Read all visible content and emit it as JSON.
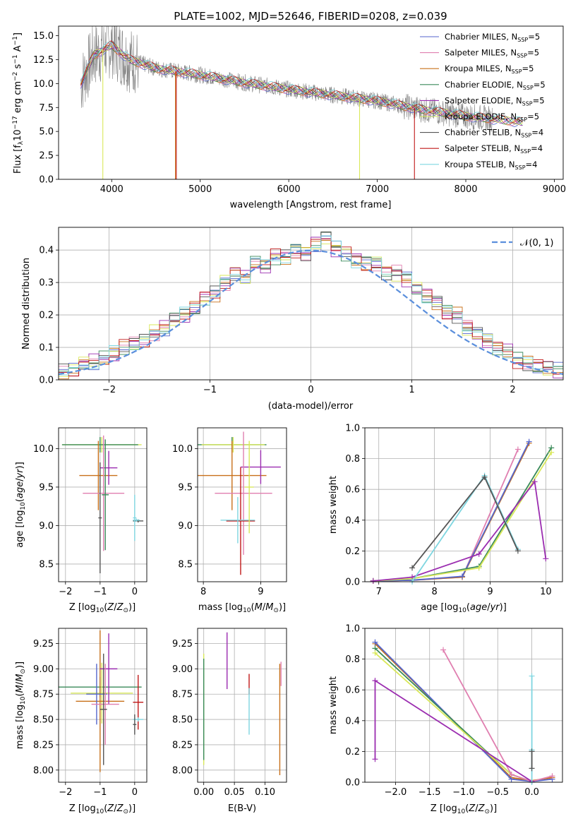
{
  "colors": {
    "chabrier_miles": "#5566cc",
    "salpeter_miles": "#e07fb0",
    "kroupa_miles": "#c8701a",
    "chabrier_elodie": "#3a8a5a",
    "salpeter_elodie": "#9b2db0",
    "kroupa_elodie": "#d9e85a",
    "chabrier_stelib": "#555555",
    "salpeter_stelib": "#c01818",
    "kroupa_stelib": "#7fd6e0",
    "normal": "#5b8fdc",
    "data": "#808080",
    "grid": "#b0b0b0"
  },
  "chart_data": [
    {
      "id": "spectrum",
      "type": "line",
      "title": "PLATE=1002, MJD=52646, FIBERID=0208, z=0.039",
      "xlabel": "wavelength [Angstrom, rest frame]",
      "ylabel": "Flux [f",
      "xlim": [
        3400,
        9100
      ],
      "ylim": [
        0,
        16
      ],
      "xticks": [
        4000,
        5000,
        6000,
        7000,
        8000,
        9000
      ],
      "yticks": [
        0.0,
        2.5,
        5.0,
        7.5,
        10.0,
        12.5,
        15.0
      ],
      "grid": false,
      "legend_position": "upper right",
      "spectrum_envelope": [
        [
          3650,
          10.0
        ],
        [
          3800,
          13.0
        ],
        [
          4000,
          14.0
        ],
        [
          4200,
          12.5
        ],
        [
          4500,
          11.6
        ],
        [
          5000,
          10.9
        ],
        [
          5500,
          10.1
        ],
        [
          6000,
          9.4
        ],
        [
          6500,
          8.8
        ],
        [
          7000,
          8.2
        ],
        [
          7500,
          7.3
        ],
        [
          8000,
          6.6
        ],
        [
          8300,
          6.3
        ]
      ],
      "series": [
        {
          "name": "Chabrier MILES, N",
          "sub": "SSP",
          "eq": "=5",
          "color": "chabrier_miles"
        },
        {
          "name": "Salpeter MILES, N",
          "sub": "SSP",
          "eq": "=5",
          "color": "salpeter_miles"
        },
        {
          "name": "Kroupa MILES, N",
          "sub": "SSP",
          "eq": "=5",
          "color": "kroupa_miles"
        },
        {
          "name": "Chabrier ELODIE, N",
          "sub": "SSP",
          "eq": "=5",
          "color": "chabrier_elodie"
        },
        {
          "name": "Salpeter ELODIE, N",
          "sub": "SSP",
          "eq": "=5",
          "color": "salpeter_elodie"
        },
        {
          "name": "Kroupa ELODIE, N",
          "sub": "SSP",
          "eq": "=5",
          "color": "kroupa_elodie"
        },
        {
          "name": "Chabrier STELIB, N",
          "sub": "SSP",
          "eq": "=4",
          "color": "chabrier_stelib"
        },
        {
          "name": "Salpeter STELIB, N",
          "sub": "SSP",
          "eq": "=4",
          "color": "salpeter_stelib"
        },
        {
          "name": "Kroupa STELIB, N",
          "sub": "SSP",
          "eq": "=4",
          "color": "kroupa_stelib"
        }
      ],
      "emission_dips": [
        [
          3900,
          0
        ],
        [
          4720,
          0
        ],
        [
          4730,
          0
        ],
        [
          6800,
          0
        ],
        [
          7420,
          0
        ]
      ]
    },
    {
      "id": "residuals",
      "type": "step",
      "xlabel": "(data-model)/error",
      "ylabel": "Normed distribution",
      "xlim": [
        -2.5,
        2.5
      ],
      "ylim": [
        0,
        0.47
      ],
      "xticks": [
        -2,
        -1,
        0,
        1,
        2
      ],
      "yticks": [
        0.0,
        0.1,
        0.2,
        0.3,
        0.4
      ],
      "grid": true,
      "legend": "𝒩(0, 1)",
      "bins": [
        -2.5,
        2.5,
        50
      ],
      "hist_values": [
        0.024,
        0.028,
        0.05,
        0.055,
        0.065,
        0.08,
        0.1,
        0.11,
        0.12,
        0.145,
        0.16,
        0.19,
        0.2,
        0.22,
        0.25,
        0.265,
        0.3,
        0.33,
        0.32,
        0.36,
        0.35,
        0.38,
        0.38,
        0.4,
        0.39,
        0.42,
        0.44,
        0.405,
        0.39,
        0.37,
        0.36,
        0.36,
        0.33,
        0.33,
        0.31,
        0.28,
        0.26,
        0.24,
        0.21,
        0.2,
        0.16,
        0.14,
        0.12,
        0.1,
        0.09,
        0.06,
        0.05,
        0.04,
        0.035,
        0.028
      ],
      "normal_curve": {
        "mean": 0,
        "sigma": 1
      }
    },
    {
      "id": "age_vs_z",
      "type": "errorbar",
      "xlabel": "Z [log",
      "ylabel": "age  [log",
      "xlim": [
        -2.2,
        0.35
      ],
      "ylim": [
        8.27,
        10.27
      ],
      "xticks": [
        -2,
        -1,
        0
      ],
      "yticks": [
        8.5,
        9.0,
        9.5,
        10.0
      ],
      "grid": true,
      "points": [
        {
          "x": -0.95,
          "xerr": 1.15,
          "y": 10.05,
          "yerr": 0.1,
          "color": "kroupa_elodie"
        },
        {
          "x": -1.0,
          "xerr": 1.1,
          "y": 10.05,
          "yerr": 0.1,
          "color": "chabrier_elodie"
        },
        {
          "x": -1.05,
          "xerr": 0.55,
          "y": 9.65,
          "yerr": 0.45,
          "color": "kroupa_miles"
        },
        {
          "x": -0.75,
          "xerr": 0.25,
          "y": 9.75,
          "yerr": 0.22,
          "color": "salpeter_elodie"
        },
        {
          "x": -0.9,
          "xerr": 0.6,
          "y": 9.42,
          "yerr": 0.75,
          "color": "salpeter_miles"
        },
        {
          "x": -0.85,
          "xerr": 0.1,
          "y": 9.4,
          "yerr": 0.72,
          "color": "chabrier_elodie"
        },
        {
          "x": -1.0,
          "xerr": 0.05,
          "y": 9.1,
          "yerr": 0.72,
          "color": "chabrier_stelib"
        },
        {
          "x": 0.1,
          "xerr": 0.15,
          "y": 9.06,
          "yerr": 0.02,
          "color": "chabrier_stelib"
        },
        {
          "x": 0.05,
          "xerr": 0.1,
          "y": 9.07,
          "yerr": 0.02,
          "color": "kroupa_stelib"
        },
        {
          "x": 0.0,
          "xerr": 0.05,
          "y": 9.1,
          "yerr": 0.3,
          "color": "kroupa_stelib"
        }
      ]
    },
    {
      "id": "age_vs_mass",
      "type": "errorbar",
      "xlabel": "mass [log",
      "ylabel": "",
      "xlim": [
        7.9,
        9.45
      ],
      "ylim": [
        8.27,
        10.27
      ],
      "xticks": [
        8,
        9
      ],
      "yticks": [
        8.5,
        9.0,
        9.5,
        10.0
      ],
      "grid": true,
      "points": [
        {
          "x": 8.5,
          "xerr": 0.6,
          "y": 10.05,
          "yerr": 0.1,
          "color": "chabrier_elodie"
        },
        {
          "x": 8.52,
          "xerr": 0.55,
          "y": 10.05,
          "yerr": 0.1,
          "color": "kroupa_elodie"
        },
        {
          "x": 8.5,
          "xerr": 0.6,
          "y": 9.65,
          "yerr": 0.45,
          "color": "kroupa_miles"
        },
        {
          "x": 9.0,
          "xerr": 0.35,
          "y": 9.76,
          "yerr": 0.22,
          "color": "salpeter_elodie"
        },
        {
          "x": 8.7,
          "xerr": 0.5,
          "y": 9.42,
          "yerr": 0.8,
          "color": "salpeter_miles"
        },
        {
          "x": 8.65,
          "xerr": 0.25,
          "y": 9.06,
          "yerr": 0.7,
          "color": "salpeter_stelib"
        },
        {
          "x": 8.6,
          "xerr": 0.3,
          "y": 9.07,
          "yerr": 0.3,
          "color": "kroupa_stelib"
        },
        {
          "x": 8.8,
          "xerr": 0.08,
          "y": 9.5,
          "yerr": 0.6,
          "color": "kroupa_elodie"
        }
      ]
    },
    {
      "id": "weight_vs_age",
      "type": "line",
      "xlabel": "age  [log",
      "ylabel": "mass weight",
      "xlim": [
        6.75,
        10.3
      ],
      "ylim": [
        0,
        1.0
      ],
      "xticks": [
        7,
        8,
        9,
        10
      ],
      "yticks": [
        0.0,
        0.2,
        0.4,
        0.6,
        0.8,
        1.0
      ],
      "grid": true,
      "series": [
        {
          "color": "salpeter_miles",
          "x": [
            6.9,
            7.6,
            8.5,
            9.5
          ],
          "y": [
            0.005,
            0.01,
            0.03,
            0.86
          ]
        },
        {
          "color": "kroupa_miles",
          "x": [
            6.9,
            7.6,
            8.5,
            9.7
          ],
          "y": [
            0.005,
            0.01,
            0.03,
            0.9
          ]
        },
        {
          "color": "chabrier_miles",
          "x": [
            6.9,
            7.6,
            8.5,
            9.7
          ],
          "y": [
            0.005,
            0.01,
            0.035,
            0.91
          ]
        },
        {
          "color": "chabrier_elodie",
          "x": [
            6.9,
            7.6,
            8.8,
            10.1
          ],
          "y": [
            0.005,
            0.02,
            0.1,
            0.87
          ]
        },
        {
          "color": "kroupa_elodie",
          "x": [
            6.9,
            7.6,
            8.8,
            10.1
          ],
          "y": [
            0.005,
            0.02,
            0.09,
            0.84
          ]
        },
        {
          "color": "salpeter_elodie",
          "x": [
            6.9,
            7.6,
            8.8,
            9.8,
            10.0
          ],
          "y": [
            0.005,
            0.03,
            0.18,
            0.65,
            0.15
          ]
        },
        {
          "color": "kroupa_stelib",
          "x": [
            7.6,
            8.9,
            9.5
          ],
          "y": [
            0.0,
            0.69,
            0.21
          ]
        },
        {
          "color": "chabrier_stelib",
          "x": [
            7.6,
            8.9,
            9.5
          ],
          "y": [
            0.09,
            0.68,
            0.2
          ]
        }
      ]
    },
    {
      "id": "mass_vs_z",
      "type": "errorbar",
      "xlabel": "Z [log",
      "ylabel": "mass [log",
      "xlim": [
        -2.2,
        0.35
      ],
      "ylim": [
        7.88,
        9.4
      ],
      "xticks": [
        -2,
        -1,
        0
      ],
      "yticks": [
        8.0,
        8.25,
        8.5,
        8.75,
        9.0,
        9.25
      ],
      "grid": true,
      "points": [
        {
          "x": -1.0,
          "xerr": 1.2,
          "y": 8.82,
          "yerr": 0.1,
          "color": "chabrier_elodie"
        },
        {
          "x": -0.95,
          "xerr": 0.9,
          "y": 8.76,
          "yerr": 0.3,
          "color": "kroupa_elodie"
        },
        {
          "x": -1.0,
          "xerr": 0.7,
          "y": 8.68,
          "yerr": 0.7,
          "color": "kroupa_miles"
        },
        {
          "x": -0.75,
          "xerr": 0.25,
          "y": 9.0,
          "yerr": 0.35,
          "color": "salpeter_elodie"
        },
        {
          "x": -1.1,
          "xerr": 0.3,
          "y": 8.75,
          "yerr": 0.3,
          "color": "chabrier_miles"
        },
        {
          "x": -0.85,
          "xerr": 0.4,
          "y": 8.65,
          "yerr": 0.4,
          "color": "salpeter_miles"
        },
        {
          "x": -0.9,
          "xerr": 0.1,
          "y": 8.6,
          "yerr": 0.55,
          "color": "chabrier_stelib"
        },
        {
          "x": 0.1,
          "xerr": 0.15,
          "y": 8.67,
          "yerr": 0.27,
          "color": "salpeter_stelib"
        },
        {
          "x": 0.1,
          "xerr": 0.15,
          "y": 8.5,
          "yerr": 0.02,
          "color": "kroupa_stelib"
        },
        {
          "x": 0.0,
          "xerr": 0.05,
          "y": 8.45,
          "yerr": 0.1,
          "color": "chabrier_stelib"
        }
      ]
    },
    {
      "id": "mass_vs_ebv",
      "type": "errorbar",
      "xlabel": "E(B-V)",
      "ylabel": "",
      "xlim": [
        -0.01,
        0.135
      ],
      "ylim": [
        7.88,
        9.4
      ],
      "xticks": [
        0.0,
        0.05,
        0.1
      ],
      "yticks": [
        8.0,
        8.25,
        8.5,
        8.75,
        9.0,
        9.25
      ],
      "grid": true,
      "points": [
        {
          "x": 0.0,
          "xerr": 0,
          "y": 8.6,
          "yerr": 0.55,
          "color": "kroupa_elodie"
        },
        {
          "x": 0.0,
          "xerr": 0,
          "y": 8.6,
          "yerr": 0.5,
          "color": "chabrier_elodie"
        },
        {
          "x": 0.038,
          "xerr": 0,
          "y": 9.08,
          "yerr": 0.28,
          "color": "salpeter_elodie"
        },
        {
          "x": 0.074,
          "xerr": 0,
          "y": 8.85,
          "yerr": 0.1,
          "color": "salpeter_stelib"
        },
        {
          "x": 0.074,
          "xerr": 0,
          "y": 8.58,
          "yerr": 0.23,
          "color": "kroupa_stelib"
        },
        {
          "x": 0.124,
          "xerr": 0,
          "y": 8.5,
          "yerr": 0.55,
          "color": "kroupa_miles"
        },
        {
          "x": 0.126,
          "xerr": 0,
          "y": 8.95,
          "yerr": 0.12,
          "color": "salpeter_miles"
        }
      ]
    },
    {
      "id": "weight_vs_z",
      "type": "line",
      "xlabel": "Z [log",
      "ylabel": "mass weight",
      "xlim": [
        -2.45,
        0.45
      ],
      "ylim": [
        0,
        1.0
      ],
      "xticks": [
        -2.0,
        -1.5,
        -1.0,
        -0.5,
        0.0
      ],
      "yticks": [
        0.0,
        0.2,
        0.4,
        0.6,
        0.8,
        1.0
      ],
      "grid": true,
      "series": [
        {
          "color": "kroupa_miles",
          "x": [
            -2.3,
            -0.3,
            0.0,
            0.3
          ],
          "y": [
            0.9,
            0.03,
            0.01,
            0.03
          ]
        },
        {
          "color": "chabrier_miles",
          "x": [
            -2.3,
            -0.3,
            0.0,
            0.3
          ],
          "y": [
            0.91,
            0.02,
            0.005,
            0.02
          ]
        },
        {
          "color": "chabrier_elodie",
          "x": [
            -2.3,
            -0.3,
            0.0
          ],
          "y": [
            0.87,
            0.05,
            0.005
          ]
        },
        {
          "color": "kroupa_elodie",
          "x": [
            -2.3,
            -0.3,
            0.0
          ],
          "y": [
            0.84,
            0.05,
            0.005
          ]
        },
        {
          "color": "salpeter_miles",
          "x": [
            -1.3,
            -0.3,
            0.0,
            0.3
          ],
          "y": [
            0.86,
            0.05,
            0.005,
            0.04
          ]
        },
        {
          "color": "salpeter_elodie",
          "x": [
            -2.3,
            -2.3,
            0.0
          ],
          "y": [
            0.15,
            0.66,
            0.005
          ]
        },
        {
          "color": "kroupa_stelib",
          "x": [
            0.0,
            0.0,
            0.0
          ],
          "y": [
            0.0,
            0.69,
            0.21
          ]
        },
        {
          "color": "chabrier_stelib",
          "x": [
            0.0,
            0.0
          ],
          "y": [
            0.09,
            0.2
          ]
        }
      ]
    }
  ]
}
